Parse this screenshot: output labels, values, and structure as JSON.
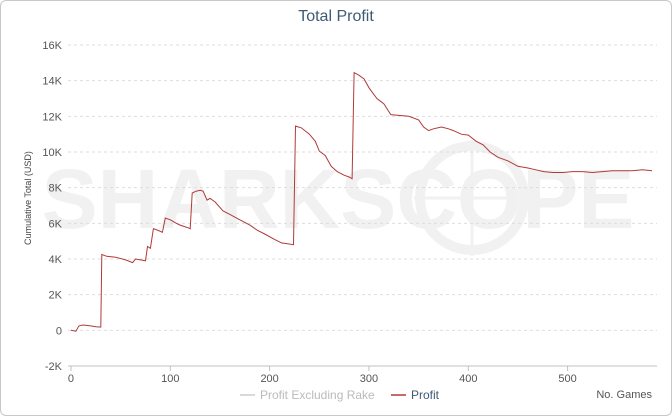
{
  "chart_data": {
    "type": "line",
    "title": "Total Profit",
    "xlabel": "No. Games",
    "ylabel": "Cumulative Total (USD)",
    "watermark": "SHARKSCOPE",
    "xlim": [
      -3,
      590
    ],
    "ylim": [
      -2000,
      16000
    ],
    "x_ticks": [
      0,
      100,
      200,
      300,
      400,
      500
    ],
    "y_ticks": [
      -2000,
      0,
      2000,
      4000,
      6000,
      8000,
      10000,
      12000,
      14000,
      16000
    ],
    "y_tick_labels": [
      "-2K",
      "0",
      "2K",
      "4K",
      "6K",
      "8K",
      "10K",
      "12K",
      "14K",
      "16K"
    ],
    "grid": "horizontal-dashed",
    "legend_position": "bottom-center",
    "colors": {
      "profit": "#b03a3a",
      "excluding_rake": "#cccccc",
      "grid": "#dddddd"
    },
    "series": [
      {
        "name": "Profit Excluding Rake",
        "visible": false,
        "points": []
      },
      {
        "name": "Profit",
        "visible": true,
        "points": [
          [
            0,
            0
          ],
          [
            5,
            -50
          ],
          [
            8,
            250
          ],
          [
            12,
            300
          ],
          [
            20,
            250
          ],
          [
            25,
            200
          ],
          [
            30,
            180
          ],
          [
            31,
            4250
          ],
          [
            36,
            4150
          ],
          [
            45,
            4100
          ],
          [
            55,
            3950
          ],
          [
            62,
            3800
          ],
          [
            65,
            4000
          ],
          [
            70,
            3950
          ],
          [
            75,
            3900
          ],
          [
            77,
            4700
          ],
          [
            80,
            4600
          ],
          [
            83,
            5700
          ],
          [
            88,
            5600
          ],
          [
            92,
            5500
          ],
          [
            95,
            6300
          ],
          [
            100,
            6200
          ],
          [
            106,
            6000
          ],
          [
            110,
            5900
          ],
          [
            115,
            5800
          ],
          [
            118,
            5750
          ],
          [
            120,
            5700
          ],
          [
            122,
            7700
          ],
          [
            126,
            7800
          ],
          [
            130,
            7850
          ],
          [
            133,
            7800
          ],
          [
            137,
            7300
          ],
          [
            140,
            7400
          ],
          [
            145,
            7200
          ],
          [
            153,
            6700
          ],
          [
            160,
            6500
          ],
          [
            170,
            6200
          ],
          [
            180,
            5900
          ],
          [
            188,
            5600
          ],
          [
            195,
            5400
          ],
          [
            205,
            5100
          ],
          [
            212,
            4900
          ],
          [
            218,
            4850
          ],
          [
            224,
            4800
          ],
          [
            226,
            11450
          ],
          [
            232,
            11350
          ],
          [
            240,
            11000
          ],
          [
            246,
            10600
          ],
          [
            250,
            10050
          ],
          [
            256,
            9800
          ],
          [
            262,
            9200
          ],
          [
            268,
            8900
          ],
          [
            275,
            8700
          ],
          [
            280,
            8600
          ],
          [
            283,
            8500
          ],
          [
            285,
            14450
          ],
          [
            290,
            14300
          ],
          [
            295,
            14100
          ],
          [
            300,
            13600
          ],
          [
            308,
            13000
          ],
          [
            315,
            12700
          ],
          [
            322,
            12100
          ],
          [
            330,
            12050
          ],
          [
            340,
            12000
          ],
          [
            350,
            11800
          ],
          [
            355,
            11400
          ],
          [
            360,
            11200
          ],
          [
            365,
            11300
          ],
          [
            373,
            11400
          ],
          [
            380,
            11300
          ],
          [
            385,
            11200
          ],
          [
            393,
            11000
          ],
          [
            400,
            10950
          ],
          [
            408,
            10600
          ],
          [
            415,
            10400
          ],
          [
            422,
            10000
          ],
          [
            430,
            9700
          ],
          [
            440,
            9500
          ],
          [
            450,
            9200
          ],
          [
            460,
            9100
          ],
          [
            468,
            9000
          ],
          [
            476,
            8900
          ],
          [
            485,
            8850
          ],
          [
            495,
            8850
          ],
          [
            505,
            8900
          ],
          [
            515,
            8900
          ],
          [
            525,
            8850
          ],
          [
            535,
            8900
          ],
          [
            545,
            8950
          ],
          [
            555,
            8950
          ],
          [
            565,
            8950
          ],
          [
            575,
            9000
          ],
          [
            585,
            8950
          ]
        ]
      }
    ]
  }
}
